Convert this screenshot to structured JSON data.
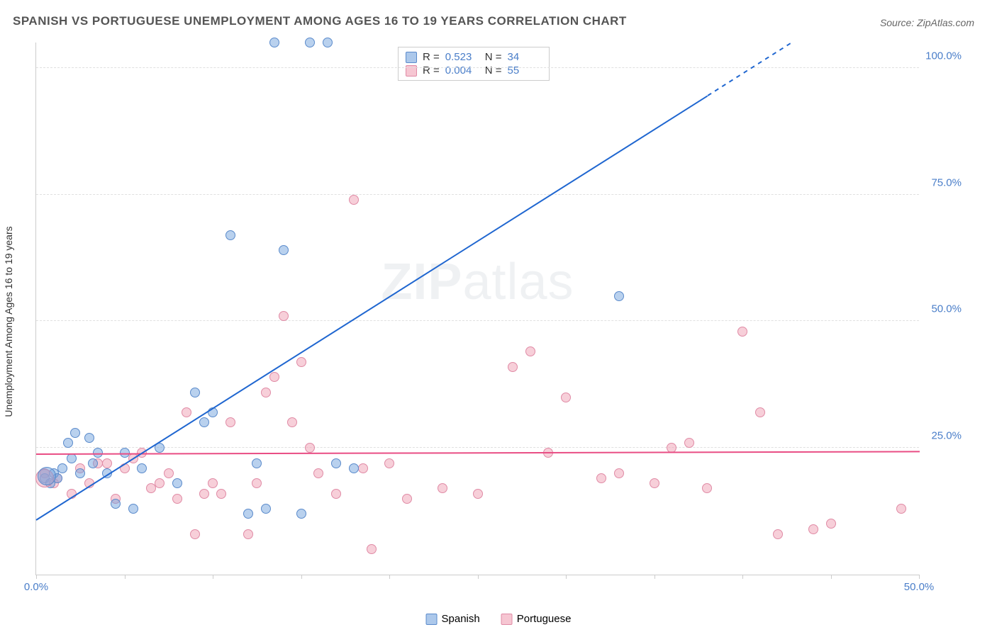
{
  "title": "SPANISH VS PORTUGUESE UNEMPLOYMENT AMONG AGES 16 TO 19 YEARS CORRELATION CHART",
  "source": "Source: ZipAtlas.com",
  "watermark": "ZIPatlas",
  "chart": {
    "type": "scatter",
    "yaxis_label": "Unemployment Among Ages 16 to 19 years",
    "xlim": [
      0,
      50
    ],
    "ylim": [
      0,
      105
    ],
    "xtick_positions": [
      0,
      5,
      10,
      15,
      20,
      25,
      30,
      35,
      40,
      45,
      50
    ],
    "xtick_labels": {
      "0": "0.0%",
      "50": "50.0%"
    },
    "ytick_positions": [
      25,
      50,
      75,
      100
    ],
    "ytick_labels": {
      "25": "25.0%",
      "50": "50.0%",
      "75": "75.0%",
      "100": "100.0%"
    },
    "background_color": "#ffffff",
    "grid_color": "#e0e0e0",
    "grid_style": "dashed",
    "axis_color": "#cccccc",
    "tick_label_color": "#4a7ec9",
    "series": [
      {
        "name": "Spanish",
        "color_fill": "rgba(116,164,222,0.5)",
        "color_stroke": "#5a8acb",
        "marker_size": 14,
        "R": "0.523",
        "N": "34",
        "trend": {
          "slope": 2.2,
          "intercept": 11,
          "color": "#1f66d0",
          "width": 2
        },
        "points": [
          [
            0.5,
            19
          ],
          [
            0.8,
            18
          ],
          [
            1.0,
            20
          ],
          [
            1.2,
            19
          ],
          [
            1.5,
            21
          ],
          [
            1.8,
            26
          ],
          [
            2,
            23
          ],
          [
            2.2,
            28
          ],
          [
            2.5,
            20
          ],
          [
            3,
            27
          ],
          [
            3.2,
            22
          ],
          [
            3.5,
            24
          ],
          [
            4,
            20
          ],
          [
            4.5,
            14
          ],
          [
            5,
            24
          ],
          [
            5.5,
            13
          ],
          [
            6,
            21
          ],
          [
            7,
            25
          ],
          [
            8,
            18
          ],
          [
            9,
            36
          ],
          [
            9.5,
            30
          ],
          [
            10,
            32
          ],
          [
            11,
            67
          ],
          [
            12,
            12
          ],
          [
            12.5,
            22
          ],
          [
            13,
            13
          ],
          [
            13.5,
            105
          ],
          [
            14,
            64
          ],
          [
            15,
            12
          ],
          [
            15.5,
            105
          ],
          [
            16.5,
            105
          ],
          [
            17,
            22
          ],
          [
            18,
            21
          ],
          [
            33,
            55
          ]
        ]
      },
      {
        "name": "Portuguese",
        "color_fill": "rgba(240,160,180,0.5)",
        "color_stroke": "#e08aa5",
        "marker_size": 14,
        "R": "0.004",
        "N": "55",
        "trend": {
          "slope": 0.01,
          "intercept": 24,
          "color": "#e94d84",
          "width": 2
        },
        "points": [
          [
            0.5,
            20
          ],
          [
            1,
            18
          ],
          [
            1.2,
            19
          ],
          [
            2,
            16
          ],
          [
            2.5,
            21
          ],
          [
            3,
            18
          ],
          [
            3.5,
            22
          ],
          [
            4,
            22
          ],
          [
            4.5,
            15
          ],
          [
            5,
            21
          ],
          [
            5.5,
            23
          ],
          [
            6,
            24
          ],
          [
            6.5,
            17
          ],
          [
            7,
            18
          ],
          [
            7.5,
            20
          ],
          [
            8,
            15
          ],
          [
            8.5,
            32
          ],
          [
            9,
            8
          ],
          [
            9.5,
            16
          ],
          [
            10,
            18
          ],
          [
            10.5,
            16
          ],
          [
            11,
            30
          ],
          [
            12,
            8
          ],
          [
            12.5,
            18
          ],
          [
            13,
            36
          ],
          [
            13.5,
            39
          ],
          [
            14,
            51
          ],
          [
            14.5,
            30
          ],
          [
            15,
            42
          ],
          [
            15.5,
            25
          ],
          [
            16,
            20
          ],
          [
            17,
            16
          ],
          [
            18,
            74
          ],
          [
            18.5,
            21
          ],
          [
            19,
            5
          ],
          [
            20,
            22
          ],
          [
            21,
            15
          ],
          [
            23,
            17
          ],
          [
            25,
            16
          ],
          [
            27,
            41
          ],
          [
            28,
            44
          ],
          [
            29,
            24
          ],
          [
            30,
            35
          ],
          [
            32,
            19
          ],
          [
            33,
            20
          ],
          [
            35,
            18
          ],
          [
            36,
            25
          ],
          [
            37,
            26
          ],
          [
            38,
            17
          ],
          [
            40,
            48
          ],
          [
            41,
            32
          ],
          [
            42,
            8
          ],
          [
            44,
            9
          ],
          [
            45,
            10
          ],
          [
            49,
            13
          ]
        ]
      }
    ],
    "cluster_markers": [
      {
        "series": 1,
        "x": 0.5,
        "y": 19,
        "size": 26
      },
      {
        "series": 0,
        "x": 0.6,
        "y": 19.5,
        "size": 26
      }
    ],
    "legend_series": [
      {
        "label": "Spanish",
        "swatch": "blue"
      },
      {
        "label": "Portuguese",
        "swatch": "pink"
      }
    ]
  }
}
